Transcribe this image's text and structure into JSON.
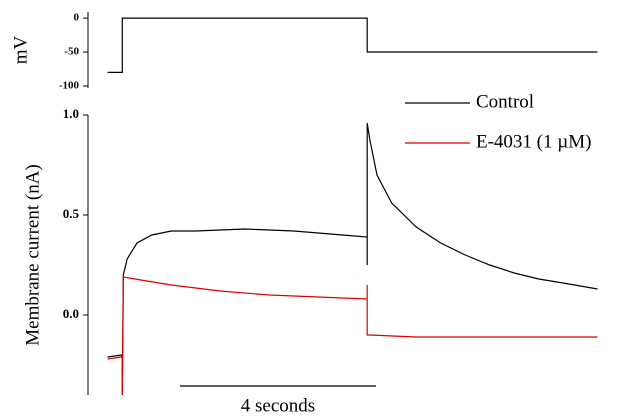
{
  "chart_data": [
    {
      "type": "line",
      "ylabel": "mV",
      "xlim": [
        -0.7,
        10.2
      ],
      "ylim": [
        -103,
        9
      ],
      "yticks": [
        0,
        -50,
        -100
      ],
      "series": [
        {
          "color": "#000000",
          "x": [
            -0.3,
            0,
            0,
            5,
            5,
            9.7
          ],
          "values": [
            -80,
            -80,
            0,
            0,
            -50,
            -50
          ]
        }
      ]
    },
    {
      "type": "line",
      "ylabel": "Membrane current (nA)",
      "xlim": [
        -0.7,
        10.2
      ],
      "ylim": [
        -0.4,
        1.0
      ],
      "yticks": [
        {
          "value": 1,
          "label": "1.0"
        },
        0.5,
        {
          "value": 0,
          "label": "0.0"
        }
      ],
      "scale_bar": {
        "value": 4,
        "label": "4 seconds"
      },
      "series": [
        {
          "name": "Control",
          "color": "#000000",
          "x": [
            -0.3,
            -0.02,
            0,
            0,
            0.02,
            0.1,
            0.3,
            0.6,
            1,
            1.5,
            2.5,
            3.5,
            4.5,
            5,
            5,
            5,
            5.05,
            5.2,
            5.5,
            6,
            6.5,
            7,
            7.5,
            8,
            8.5,
            9,
            9.7
          ],
          "values": [
            -0.21,
            -0.2,
            -0.21,
            -0.4,
            0.2,
            0.28,
            0.36,
            0.4,
            0.42,
            0.42,
            0.43,
            0.42,
            0.4,
            0.39,
            0.25,
            0.96,
            0.88,
            0.7,
            0.56,
            0.44,
            0.36,
            0.3,
            0.25,
            0.21,
            0.18,
            0.16,
            0.13
          ]
        },
        {
          "name": "E-4031 (1 µM)",
          "color": "#dd0000",
          "x": [
            -0.3,
            -0.02,
            0,
            0,
            0.02,
            0.5,
            1,
            2,
            3,
            4,
            5,
            5,
            5,
            5.05,
            6,
            7,
            8,
            9,
            9.7
          ],
          "values": [
            -0.22,
            -0.21,
            -0.21,
            -0.4,
            0.19,
            0.17,
            0.15,
            0.12,
            0.1,
            0.09,
            0.08,
            0.15,
            -0.1,
            -0.1,
            -0.11,
            -0.11,
            -0.11,
            -0.11,
            -0.11
          ]
        }
      ]
    }
  ]
}
